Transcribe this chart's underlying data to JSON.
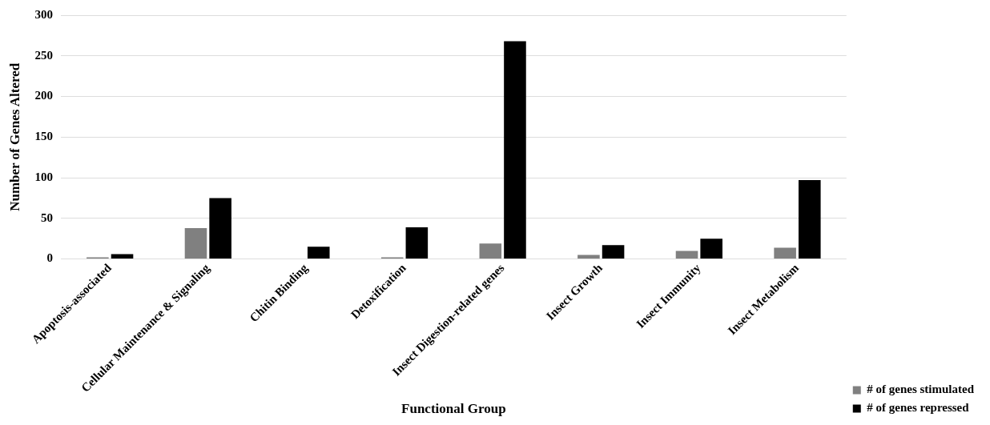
{
  "chart_data": {
    "type": "bar",
    "xlabel": "Functional Group",
    "ylabel": "Number of Genes Altered",
    "categories": [
      "Apoptosis-associated",
      "Cellular Maintenance & Signaling",
      "Chitin Binding",
      "Detoxification",
      "Insect Digestion-related genes",
      "Insect Growth",
      "Insect Immunity",
      "Insect Metabolism"
    ],
    "series": [
      {
        "name": "# of genes stimulated",
        "color": "#808080",
        "values": [
          2,
          38,
          0,
          2,
          19,
          5,
          10,
          14
        ]
      },
      {
        "name": "# of genes repressed",
        "color": "#000000",
        "values": [
          6,
          75,
          15,
          39,
          268,
          17,
          25,
          97
        ]
      }
    ],
    "ylim": [
      0,
      300
    ],
    "yticks": [
      0,
      50,
      100,
      150,
      200,
      250,
      300
    ],
    "grid": "y",
    "legend": "bottom right"
  }
}
